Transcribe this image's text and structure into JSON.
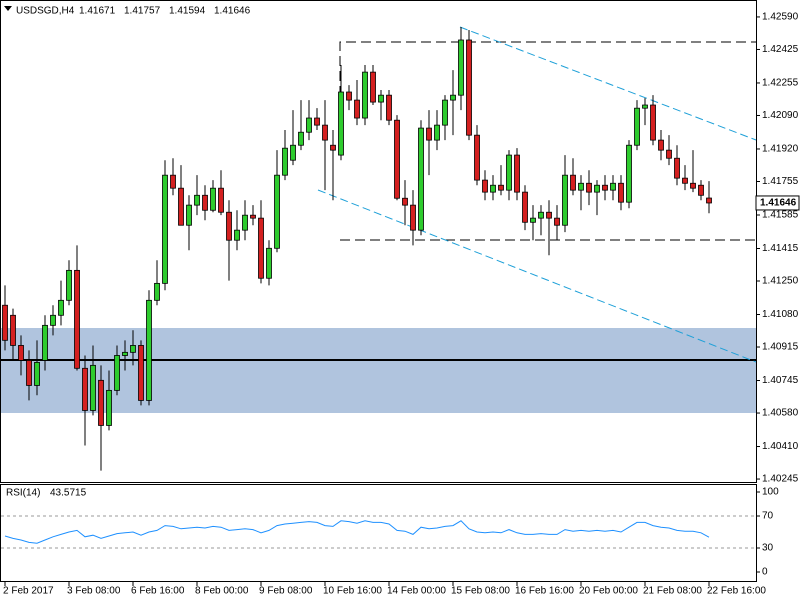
{
  "chart_data": [
    {
      "type": "candlestick",
      "title": "USDSGD,H4",
      "categories": [
        "2 Feb 2017",
        null,
        null,
        null,
        null,
        null,
        null,
        null,
        "3 Feb 08:00",
        null,
        null,
        null,
        null,
        null,
        null,
        null,
        "6 Feb 16:00",
        null,
        null,
        null,
        null,
        null,
        null,
        null,
        "8 Feb 00:00",
        null,
        null,
        null,
        null,
        null,
        null,
        null,
        "9 Feb 08:00",
        null,
        null,
        null,
        null,
        null,
        null,
        null,
        "10 Feb 16:00",
        null,
        null,
        null,
        null,
        null,
        null,
        null,
        "14 Feb 00:00",
        null,
        null,
        null,
        null,
        null,
        null,
        null,
        "15 Feb 08:00",
        null,
        null,
        null,
        null,
        null,
        null,
        null,
        "16 Feb 16:00",
        null,
        null,
        null,
        null,
        null,
        null,
        null,
        "20 Feb 00:00",
        null,
        null,
        null,
        null,
        null,
        null,
        null,
        "21 Feb 08:00",
        null,
        null,
        null,
        null,
        null,
        null,
        null,
        "22 Feb 16:00"
      ],
      "open": [
        1.41127,
        1.41076,
        1.40923,
        1.40847,
        1.4072,
        1.40847,
        1.41025,
        1.41076,
        1.41152,
        1.41304,
        1.40807,
        1.40593,
        1.40746,
        1.40517,
        1.40695,
        1.40872,
        1.40888,
        1.40923,
        1.40644,
        1.41152,
        1.41238,
        1.41787,
        1.41721,
        1.41533,
        1.41635,
        1.41685,
        1.41609,
        1.41721,
        1.41599,
        1.41457,
        1.41508,
        1.41584,
        1.41569,
        1.41264,
        1.41416,
        1.41787,
        1.41863,
        1.41939,
        1.42005,
        1.42077,
        1.42041,
        1.41939,
        1.41889,
        1.42209,
        1.42168,
        1.42077,
        1.4231,
        1.42158,
        1.42193,
        1.42066,
        1.4167,
        1.41635,
        1.41508,
        1.42026,
        1.41965,
        1.42041,
        1.42168,
        1.42193,
        1.42473,
        1.4199,
        1.41762,
        1.41701,
        1.41736,
        1.41711,
        1.41889,
        1.41701,
        1.41548,
        1.41569,
        1.41599,
        1.41569,
        1.41533,
        1.41787,
        1.41711,
        1.41746,
        1.41701,
        1.41736,
        1.41711,
        1.41746,
        1.4165,
        1.41939,
        1.42127,
        1.42143,
        1.41965,
        1.41914,
        1.41873,
        1.41772,
        1.41746,
        1.41736,
        1.41671
      ],
      "high": [
        1.41228,
        1.4111,
        1.40974,
        1.40898,
        1.40949,
        1.41076,
        1.41127,
        1.41252,
        1.41355,
        1.41431,
        1.40872,
        1.40923,
        1.40822,
        1.40796,
        1.40923,
        1.40949,
        1.41,
        1.40949,
        1.41203,
        1.41355,
        1.41863,
        1.41873,
        1.41838,
        1.41685,
        1.41787,
        1.41736,
        1.41762,
        1.41812,
        1.4166,
        1.41609,
        1.4166,
        1.41635,
        1.4166,
        1.41457,
        1.41914,
        1.42016,
        1.42117,
        1.42168,
        1.42168,
        1.42127,
        1.42168,
        1.42016,
        1.42346,
        1.42244,
        1.4227,
        1.42346,
        1.42346,
        1.42219,
        1.42219,
        1.42092,
        1.41762,
        1.41711,
        1.42066,
        1.42117,
        1.42117,
        1.42193,
        1.4232,
        1.42539,
        1.42524,
        1.42041,
        1.41812,
        1.41787,
        1.41838,
        1.41914,
        1.41924,
        1.41736,
        1.41635,
        1.41635,
        1.4166,
        1.41635,
        1.41889,
        1.41873,
        1.41787,
        1.41812,
        1.41762,
        1.41787,
        1.41787,
        1.41787,
        1.41965,
        1.42168,
        1.42178,
        1.42193,
        1.42016,
        1.4199,
        1.41939,
        1.41838,
        1.41914,
        1.41762,
        1.41757
      ],
      "low": [
        1.40898,
        1.40847,
        1.40771,
        1.40644,
        1.4067,
        1.40796,
        1.40974,
        1.41025,
        1.41127,
        1.40796,
        1.40415,
        1.40568,
        1.40288,
        1.40492,
        1.4067,
        1.40796,
        1.40822,
        1.40619,
        1.40619,
        1.41127,
        1.41203,
        1.41685,
        1.41533,
        1.41406,
        1.41584,
        1.41558,
        1.41599,
        1.41584,
        1.41252,
        1.41406,
        1.41457,
        1.41533,
        1.41238,
        1.41228,
        1.41396,
        1.41762,
        1.41838,
        1.41914,
        1.41965,
        1.42016,
        1.41711,
        1.4166,
        1.41863,
        1.42117,
        1.42041,
        1.42041,
        1.42143,
        1.42066,
        1.42041,
        1.4166,
        1.41533,
        1.41431,
        1.41482,
        1.41787,
        1.41914,
        1.41965,
        1.4199,
        1.42117,
        1.41965,
        1.41736,
        1.4166,
        1.4166,
        1.41685,
        1.4166,
        1.4166,
        1.41508,
        1.41457,
        1.41482,
        1.41381,
        1.41457,
        1.41498,
        1.41685,
        1.41609,
        1.41635,
        1.41584,
        1.4166,
        1.4166,
        1.41609,
        1.41619,
        1.41914,
        1.42041,
        1.41939,
        1.41863,
        1.41838,
        1.41736,
        1.41711,
        1.41701,
        1.4166,
        1.41594
      ],
      "close": [
        1.40949,
        1.40923,
        1.40847,
        1.4072,
        1.40837,
        1.41025,
        1.41076,
        1.41152,
        1.41304,
        1.40807,
        1.40593,
        1.40822,
        1.40517,
        1.40695,
        1.40872,
        1.40888,
        1.40923,
        1.40644,
        1.41152,
        1.41238,
        1.41787,
        1.41721,
        1.41533,
        1.41635,
        1.41685,
        1.41609,
        1.41721,
        1.41599,
        1.41457,
        1.41508,
        1.41584,
        1.41569,
        1.41264,
        1.41416,
        1.41787,
        1.41924,
        1.41939,
        1.42005,
        1.42077,
        1.42041,
        1.41965,
        1.41914,
        1.42209,
        1.42168,
        1.42077,
        1.4231,
        1.42158,
        1.42193,
        1.42066,
        1.4167,
        1.41635,
        1.41508,
        1.42026,
        1.41965,
        1.42041,
        1.42168,
        1.42193,
        1.42473,
        1.4199,
        1.41762,
        1.41701,
        1.41736,
        1.41711,
        1.41889,
        1.41701,
        1.41548,
        1.41569,
        1.41599,
        1.41569,
        1.41533,
        1.41787,
        1.41711,
        1.41746,
        1.41701,
        1.41736,
        1.41711,
        1.41746,
        1.4165,
        1.41939,
        1.42127,
        1.42143,
        1.41965,
        1.41914,
        1.41873,
        1.41772,
        1.41746,
        1.41721,
        1.41685,
        1.41646
      ],
      "up_color": "#2ecc2e",
      "down_color": "#d42020",
      "ylim": [
        1.4023,
        1.42676
      ],
      "yticks": [
        {
          "value": 1.4259,
          "label": "1.42590"
        },
        1.42425,
        1.42255,
        {
          "value": 1.4209,
          "label": "1.42090"
        },
        {
          "value": 1.4192,
          "label": "1.41920"
        },
        1.41755,
        1.41585,
        1.41415,
        {
          "value": 1.4125,
          "label": "1.41250"
        },
        {
          "value": 1.4108,
          "label": "1.41080"
        },
        1.40915,
        1.40745,
        {
          "value": 1.4058,
          "label": "1.40580"
        },
        {
          "value": 1.4041,
          "label": "1.40410"
        },
        1.40245
      ]
    },
    {
      "type": "line",
      "title": "RSI(14)",
      "color": "#1e90ff",
      "values": [
        45,
        42,
        40,
        37,
        36,
        40,
        44,
        47,
        50,
        52,
        44,
        46,
        42,
        45,
        48,
        49,
        50,
        46,
        50,
        52,
        58,
        57,
        54,
        55,
        56,
        55,
        57,
        56,
        52,
        53,
        54,
        53,
        49,
        52,
        58,
        60,
        61,
        62,
        63,
        62,
        58,
        57,
        64,
        63,
        61,
        64,
        62,
        62,
        60,
        52,
        51,
        47,
        56,
        54,
        55,
        57,
        58,
        64,
        54,
        50,
        49,
        50,
        49,
        53,
        49,
        47,
        47,
        48,
        47,
        47,
        53,
        51,
        52,
        51,
        52,
        51,
        52,
        50,
        56,
        62,
        62,
        58,
        56,
        55,
        52,
        51,
        51,
        49,
        43.5715
      ],
      "ylim": [
        0,
        100
      ],
      "yticks": [
        100,
        70,
        30,
        0
      ]
    }
  ]
}
